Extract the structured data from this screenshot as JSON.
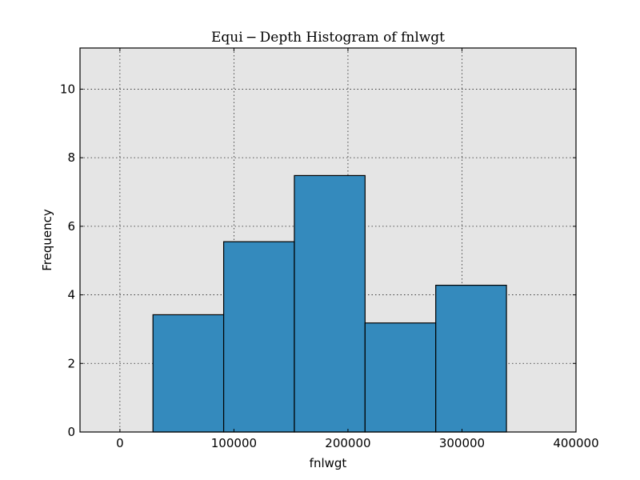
{
  "chart_data": {
    "type": "bar",
    "title": "Equi − Depth Histogram of fnlwgt",
    "xlabel": "fnlwgt",
    "ylabel": "Frequency",
    "xlim": [
      -35000,
      400000
    ],
    "ylim": [
      0,
      11.2
    ],
    "x_ticks": [
      0,
      100000,
      200000,
      300000,
      400000
    ],
    "y_ticks": [
      0,
      2,
      4,
      6,
      8,
      10
    ],
    "grid": true,
    "colors": {
      "bar": "#348abd",
      "plot_bg": "#e5e5e5"
    },
    "bins": [
      {
        "start": 29000,
        "end": 91000,
        "value": 3.42
      },
      {
        "start": 91000,
        "end": 153000,
        "value": 5.55
      },
      {
        "start": 153000,
        "end": 215000,
        "value": 7.48
      },
      {
        "start": 215000,
        "end": 277000,
        "value": 3.18
      },
      {
        "start": 277000,
        "end": 339000,
        "value": 4.28
      }
    ]
  }
}
